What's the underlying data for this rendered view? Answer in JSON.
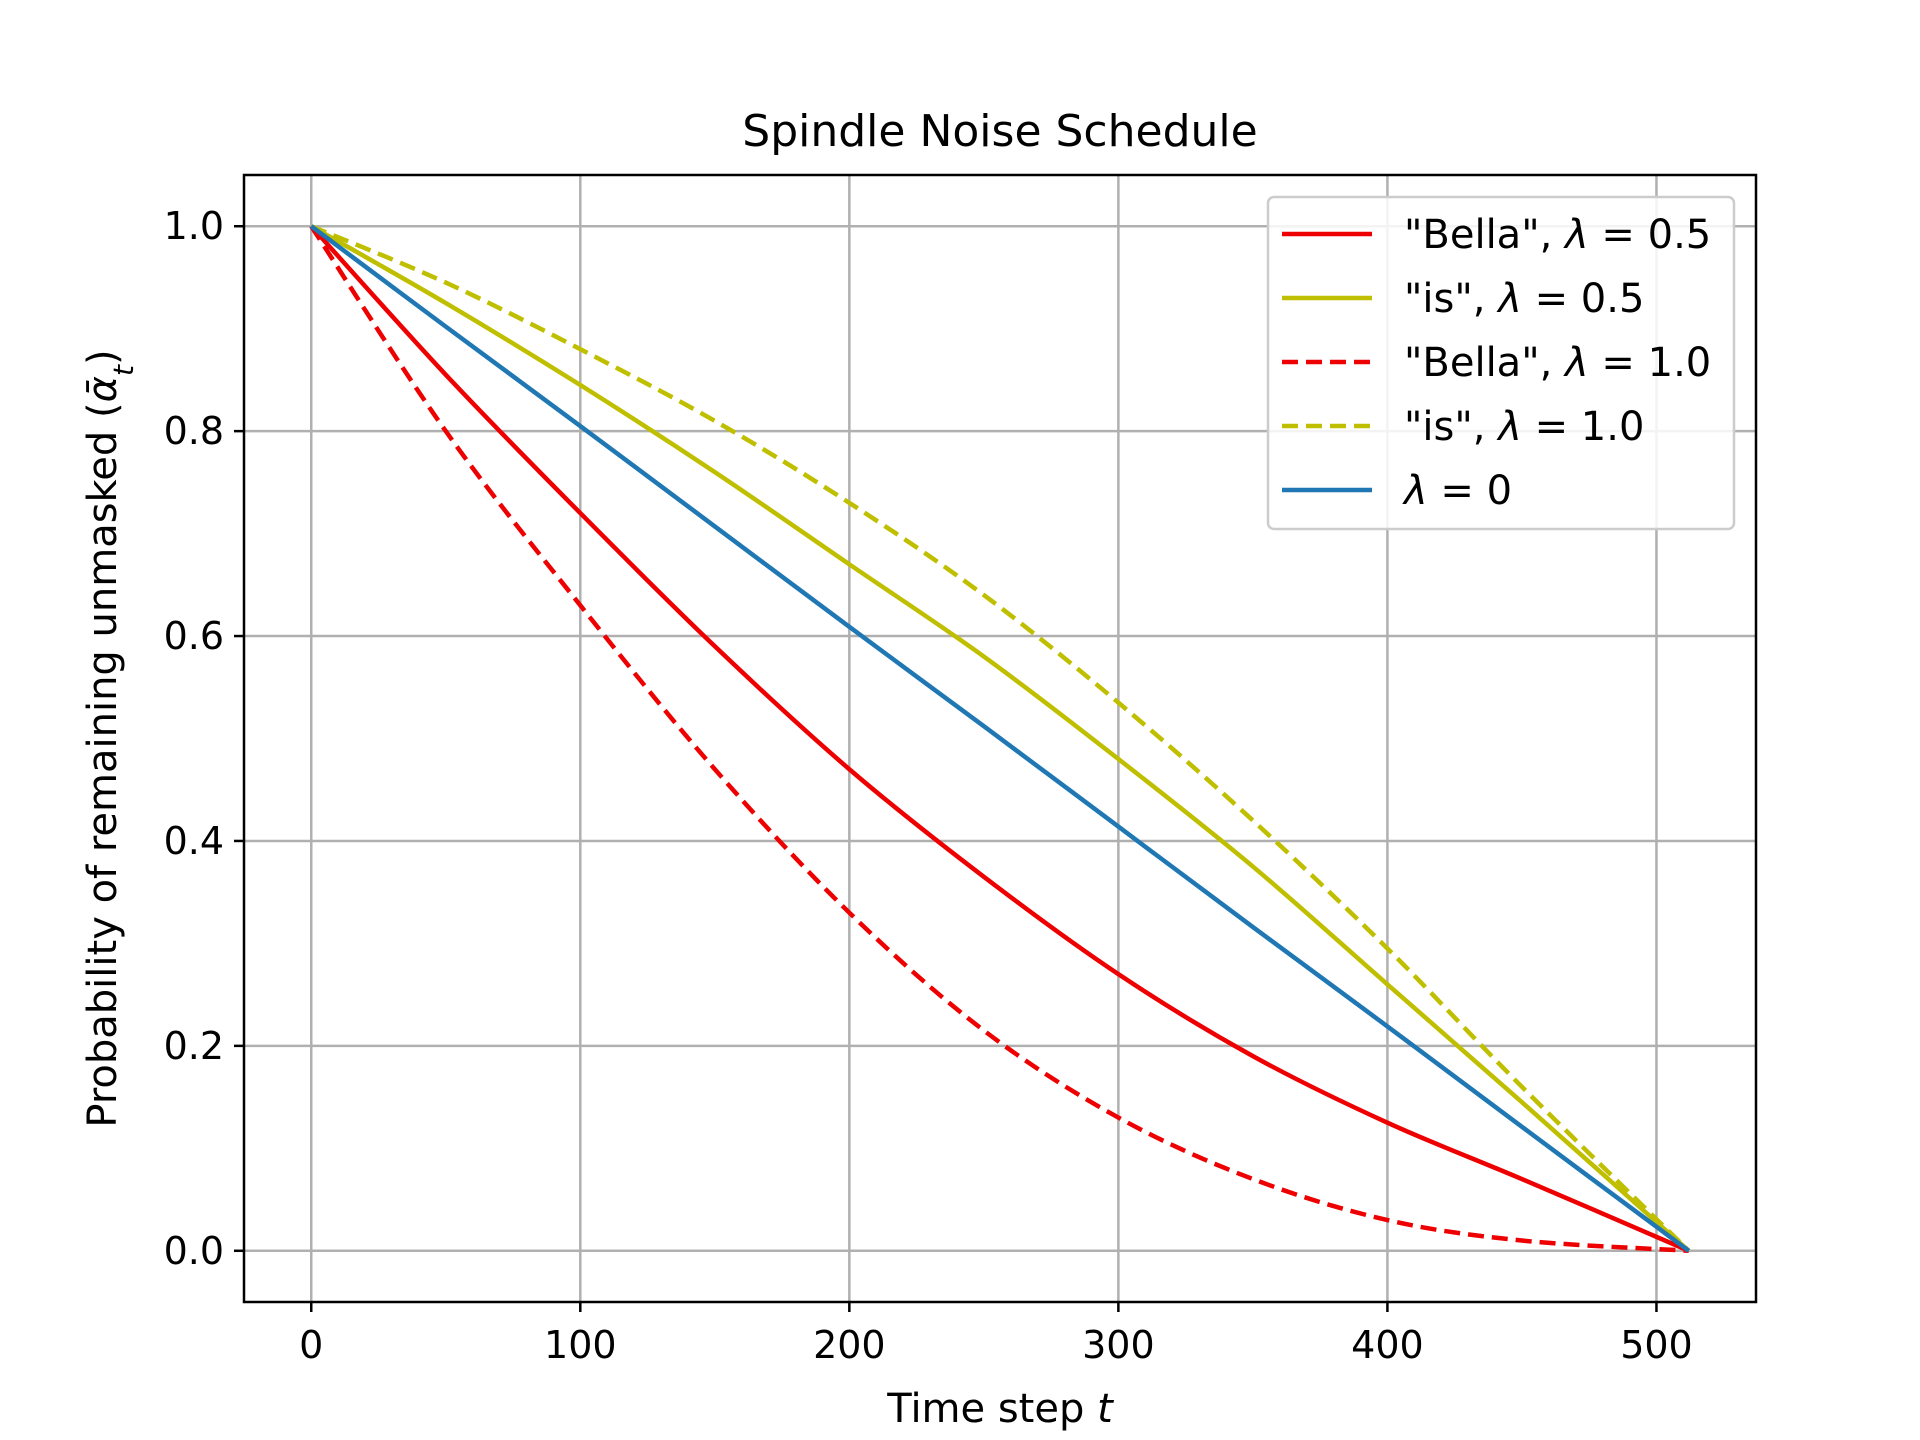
{
  "chart_data": {
    "type": "line",
    "title": "Spindle Noise Schedule",
    "xlabel": "Time step t",
    "xlabel_parts": {
      "prefix": "Time step ",
      "var": "t"
    },
    "ylabel": "Probability of remaining unmasked (ᾱₜ)",
    "ylabel_parts": {
      "prefix": "Probability of remaining unmasked (",
      "var": "ᾱ",
      "sub": "t",
      "suffix": ")"
    },
    "xlim": [
      -25,
      537
    ],
    "ylim": [
      -0.05,
      1.05
    ],
    "xticks": [
      0,
      100,
      200,
      300,
      400,
      500
    ],
    "xtick_labels": [
      "0",
      "100",
      "200",
      "300",
      "400",
      "500"
    ],
    "yticks": [
      0.0,
      0.2,
      0.4,
      0.6,
      0.8,
      1.0
    ],
    "ytick_labels": [
      "0.0",
      "0.2",
      "0.4",
      "0.6",
      "0.8",
      "1.0"
    ],
    "grid": true,
    "legend_position": "top-right",
    "x": [
      0,
      50,
      100,
      150,
      200,
      250,
      300,
      350,
      400,
      450,
      512
    ],
    "series": [
      {
        "name": "\"Bella\", λ = 0.5",
        "label_prefix": "\"Bella\", ",
        "label_var": "λ",
        "label_value": " = 0.5",
        "color": "#ee0000",
        "dash": "solid",
        "values": [
          1.0,
          0.855,
          0.72,
          0.59,
          0.47,
          0.365,
          0.27,
          0.19,
          0.125,
          0.07,
          0.0
        ]
      },
      {
        "name": "\"is\", λ = 0.5",
        "label_prefix": "\"is\", ",
        "label_var": "λ",
        "label_value": " = 0.5",
        "color": "#bfbf00",
        "dash": "solid",
        "values": [
          1.0,
          0.925,
          0.845,
          0.76,
          0.67,
          0.58,
          0.48,
          0.375,
          0.26,
          0.145,
          0.0
        ]
      },
      {
        "name": "\"Bella\", λ = 1.0",
        "label_prefix": "\"Bella\", ",
        "label_var": "λ",
        "label_value": " = 1.0",
        "color": "#ee0000",
        "dash": "dashed",
        "values": [
          1.0,
          0.8,
          0.63,
          0.47,
          0.33,
          0.215,
          0.13,
          0.07,
          0.03,
          0.01,
          0.0
        ]
      },
      {
        "name": "\"is\", λ = 1.0",
        "label_prefix": "\"is\", ",
        "label_var": "λ",
        "label_value": " = 1.0",
        "color": "#bfbf00",
        "dash": "dashed",
        "values": [
          1.0,
          0.945,
          0.88,
          0.81,
          0.73,
          0.64,
          0.535,
          0.42,
          0.295,
          0.16,
          0.0
        ]
      },
      {
        "name": "λ = 0",
        "label_prefix": "",
        "label_var": "λ",
        "label_value": " = 0",
        "color": "#1f77b4",
        "dash": "solid",
        "values": [
          1.0,
          0.902,
          0.805,
          0.707,
          0.609,
          0.512,
          0.414,
          0.316,
          0.219,
          0.121,
          0.0
        ]
      }
    ]
  }
}
